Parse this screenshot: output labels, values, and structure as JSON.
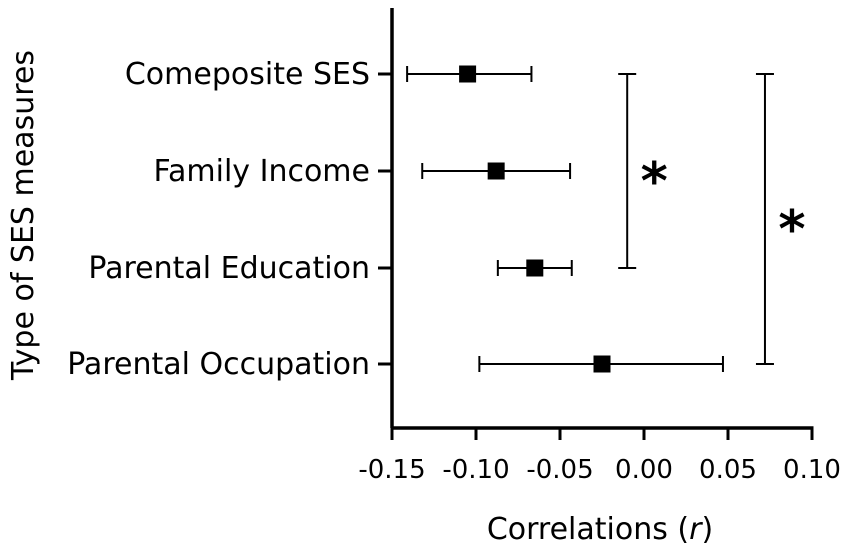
{
  "chart_data": {
    "type": "scatter",
    "orientation": "horizontal",
    "xlabel_main": "Correlations (",
    "xlabel_var": "r",
    "xlabel_tail": ")",
    "ylabel": "Type of SES measures",
    "xlim": [
      -0.15,
      0.1
    ],
    "x_ticks": [
      -0.15,
      -0.1,
      -0.05,
      0.0,
      0.05,
      0.1
    ],
    "x_tick_labels": [
      "-0.15",
      "-0.10",
      "-0.05",
      "0.00",
      "0.05",
      "0.10"
    ],
    "categories": [
      "Comeposite SES",
      "Family Income",
      "Parental Education",
      "Parental Occupation"
    ],
    "series": [
      {
        "estimate": [
          -0.105,
          -0.088,
          -0.065,
          -0.025
        ],
        "ci_low": [
          -0.141,
          -0.132,
          -0.087,
          -0.098
        ],
        "ci_high": [
          -0.067,
          -0.044,
          -0.043,
          0.047
        ]
      }
    ],
    "significance": [
      {
        "from": "Comeposite SES",
        "to": "Parental Education",
        "x": -0.01,
        "label": "*"
      },
      {
        "from": "Comeposite SES",
        "to": "Parental Occupation",
        "x": 0.072,
        "label": "*"
      }
    ],
    "grid": false
  }
}
